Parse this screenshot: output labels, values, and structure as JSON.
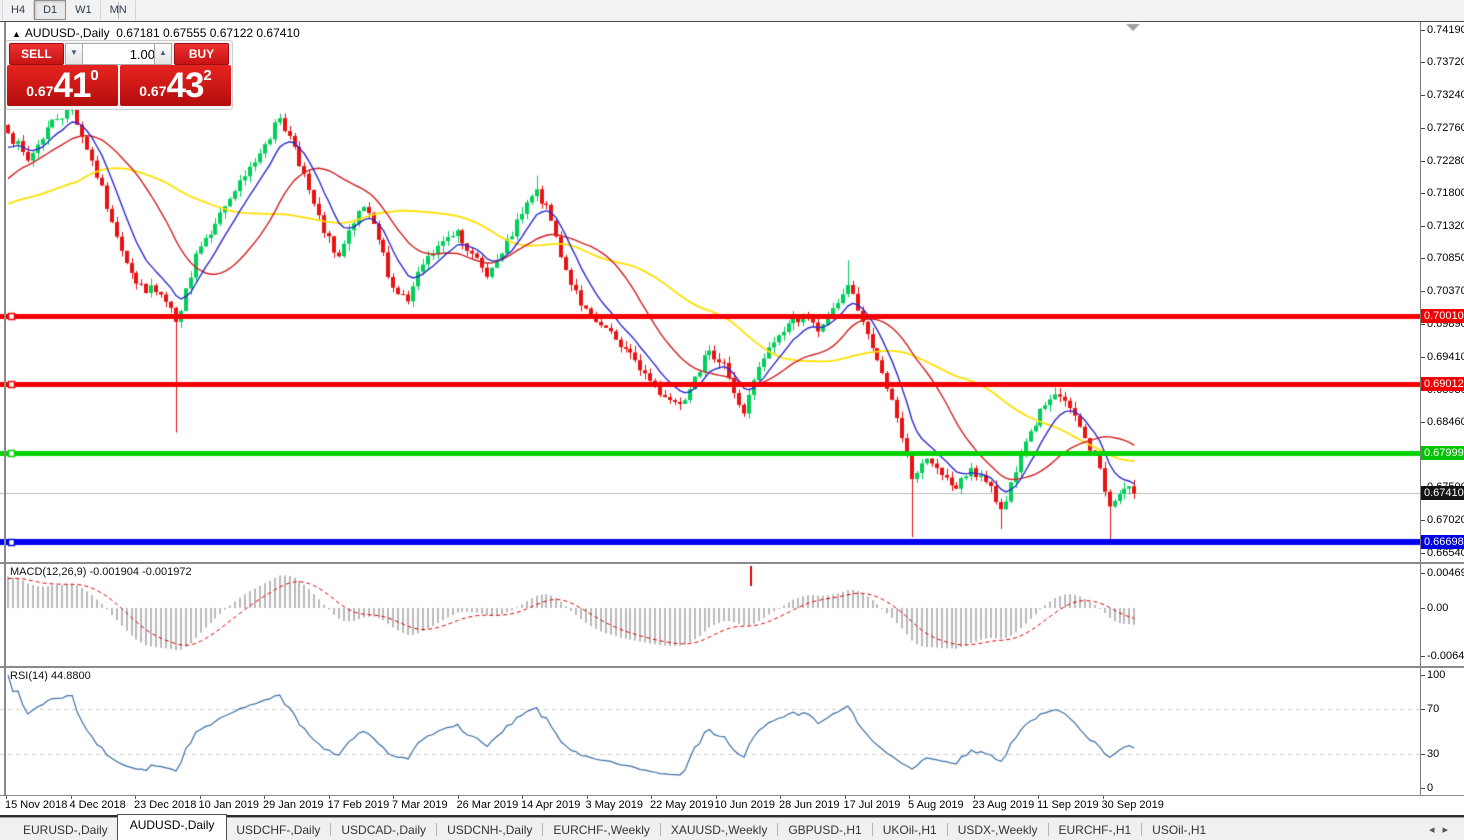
{
  "toolbar": {
    "timeframes": [
      "H4",
      "D1",
      "W1",
      "MN"
    ],
    "active_timeframe": "D1"
  },
  "chart_header": {
    "arrow": "▲",
    "symbol": "AUDUSD-,Daily",
    "ohlc": "0.67181 0.67555 0.67122 0.67410"
  },
  "trade_panel": {
    "sell_label": "SELL",
    "buy_label": "BUY",
    "volume": "1.00",
    "sell_price": {
      "small": "0.67",
      "big": "41",
      "sup": "0"
    },
    "buy_price": {
      "small": "0.67",
      "big": "43",
      "sup": "2"
    }
  },
  "price_axis": {
    "labels": [
      "0.74190",
      "0.73720",
      "0.73240",
      "0.72760",
      "0.72280",
      "0.71800",
      "0.71320",
      "0.70850",
      "0.70370",
      "0.69890",
      "0.69410",
      "0.68930",
      "0.68460",
      "0.67500",
      "0.67020",
      "0.66540"
    ],
    "tags": [
      {
        "value": "0.70010",
        "price": 0.7001,
        "color": "#f00000"
      },
      {
        "value": "0.69012",
        "price": 0.69012,
        "color": "#f00000"
      },
      {
        "value": "0.67999",
        "price": 0.67999,
        "color": "#00c400"
      },
      {
        "value": "0.67410",
        "price": 0.6741,
        "color": "#141414"
      },
      {
        "value": "0.66698",
        "price": 0.66698,
        "color": "#0000e0"
      }
    ]
  },
  "macd_panel": {
    "label": "MACD(12,26,9) -0.001904 -0.001972",
    "axis": [
      "0.004696",
      "0.00",
      "-0.006427"
    ],
    "axis_values": [
      0.004696,
      0,
      -0.006427
    ]
  },
  "rsi_panel": {
    "label": "RSI(14) 44.8800",
    "axis": [
      "100",
      "70",
      "30",
      "0"
    ],
    "axis_values": [
      100,
      70,
      30,
      0
    ],
    "levels": [
      70,
      30
    ]
  },
  "date_axis": [
    "15 Nov 2018",
    "4 Dec 2018",
    "23 Dec 2018",
    "10 Jan 2019",
    "29 Jan 2019",
    "17 Feb 2019",
    "7 Mar 2019",
    "26 Mar 2019",
    "14 Apr 2019",
    "3 May 2019",
    "22 May 2019",
    "10 Jun 2019",
    "28 Jun 2019",
    "17 Jul 2019",
    "5 Aug 2019",
    "23 Aug 2019",
    "11 Sep 2019",
    "30 Sep 2019"
  ],
  "tabs": {
    "items": [
      "EURUSD-,Daily",
      "AUDUSD-,Daily",
      "USDCHF-,Daily",
      "USDCAD-,Daily",
      "USDCNH-,Daily",
      "EURCHF-,Weekly",
      "XAUUSD-,Weekly",
      "GBPUSD-,H1",
      "UKOil-,H1",
      "USDX-,Weekly",
      "EURCHF-,H1",
      "USOil-,H1"
    ],
    "active_index": 1,
    "scroll_left_icon": "◂",
    "scroll_right_icon": "▸"
  },
  "chart_data": {
    "type": "candlestick",
    "symbol": "AUDUSD",
    "timeframe": "Daily",
    "ylim": [
      0.6654,
      0.7419
    ],
    "bars": 229,
    "keypoints": [
      [
        0,
        0.7268
      ],
      [
        4,
        0.7228
      ],
      [
        9,
        0.7288
      ],
      [
        13,
        0.7303
      ],
      [
        17,
        0.7228
      ],
      [
        21,
        0.7138
      ],
      [
        26,
        0.7048
      ],
      [
        31,
        0.7032
      ],
      [
        34,
        0.6992
      ],
      [
        35,
        0.7008
      ],
      [
        38,
        0.7092
      ],
      [
        43,
        0.7152
      ],
      [
        48,
        0.7205
      ],
      [
        52,
        0.7252
      ],
      [
        55,
        0.729
      ],
      [
        58,
        0.7248
      ],
      [
        61,
        0.7185
      ],
      [
        64,
        0.7122
      ],
      [
        67,
        0.7088
      ],
      [
        70,
        0.7136
      ],
      [
        72,
        0.716
      ],
      [
        75,
        0.7112
      ],
      [
        78,
        0.7042
      ],
      [
        81,
        0.7022
      ],
      [
        84,
        0.7076
      ],
      [
        88,
        0.711
      ],
      [
        91,
        0.7126
      ],
      [
        94,
        0.7092
      ],
      [
        97,
        0.7058
      ],
      [
        100,
        0.7092
      ],
      [
        104,
        0.715
      ],
      [
        107,
        0.7186
      ],
      [
        110,
        0.714
      ],
      [
        113,
        0.7068
      ],
      [
        116,
        0.7016
      ],
      [
        119,
        0.6992
      ],
      [
        123,
        0.6966
      ],
      [
        127,
        0.6936
      ],
      [
        130,
        0.6906
      ],
      [
        133,
        0.6882
      ],
      [
        136,
        0.6872
      ],
      [
        139,
        0.6912
      ],
      [
        142,
        0.695
      ],
      [
        145,
        0.6932
      ],
      [
        147,
        0.6888
      ],
      [
        149,
        0.6858
      ],
      [
        152,
        0.6926
      ],
      [
        155,
        0.6962
      ],
      [
        158,
        0.699
      ],
      [
        161,
        0.7002
      ],
      [
        164,
        0.6978
      ],
      [
        167,
        0.7012
      ],
      [
        170,
        0.7046
      ],
      [
        173,
        0.6992
      ],
      [
        176,
        0.6936
      ],
      [
        179,
        0.6878
      ],
      [
        181,
        0.6822
      ],
      [
        183,
        0.6762
      ],
      [
        186,
        0.6792
      ],
      [
        189,
        0.6768
      ],
      [
        192,
        0.6748
      ],
      [
        195,
        0.6778
      ],
      [
        198,
        0.6758
      ],
      [
        201,
        0.6718
      ],
      [
        204,
        0.6772
      ],
      [
        207,
        0.6832
      ],
      [
        210,
        0.687
      ],
      [
        212,
        0.6886
      ],
      [
        215,
        0.6866
      ],
      [
        218,
        0.6822
      ],
      [
        221,
        0.6778
      ],
      [
        223,
        0.6722
      ],
      [
        226,
        0.6748
      ],
      [
        228,
        0.6741
      ]
    ],
    "wick_events": [
      {
        "i": 34,
        "low": 0.683
      },
      {
        "i": 107,
        "high": 0.7206
      },
      {
        "i": 170,
        "high": 0.7082
      },
      {
        "i": 183,
        "low": 0.6677
      },
      {
        "i": 201,
        "low": 0.6689
      },
      {
        "i": 223,
        "low": 0.6671
      }
    ],
    "hlines": [
      {
        "price": 0.7001,
        "color": "#f40000",
        "width": 5
      },
      {
        "price": 0.69012,
        "color": "#f40000",
        "width": 5
      },
      {
        "price": 0.67999,
        "color": "#00d400",
        "width": 5
      },
      {
        "price": 0.66698,
        "color": "#0000ee",
        "width": 6
      }
    ],
    "bid_price": 0.6741,
    "ma": [
      {
        "type": "ema",
        "period": 8,
        "color": "#2b2bd0",
        "width": 1.4
      },
      {
        "type": "sma",
        "period": 21,
        "color": "#d32121",
        "width": 1.4
      },
      {
        "type": "sma",
        "period": 45,
        "color": "#ffdf00",
        "width": 1.8
      }
    ],
    "macd": {
      "fast": 12,
      "slow": 26,
      "signal": 9,
      "hist_color": "#b9b9b9",
      "signal_color": "#dd0000",
      "last": -0.001904,
      "last_signal": -0.001972,
      "scale_max": 0.004696,
      "scale_min": -0.006427,
      "marker": {
        "x": 750,
        "top": 2,
        "height": 20,
        "color": "#e00000"
      }
    },
    "rsi": {
      "period": 14,
      "color": "#3d6fa5",
      "last": 44.88,
      "level_color": "#cccccc"
    },
    "candle_up_color": "#00cf5a",
    "candle_down_color": "#e91212",
    "bid_line_color": "#bdbdbd",
    "noise": 0.0009,
    "seed": 7
  }
}
